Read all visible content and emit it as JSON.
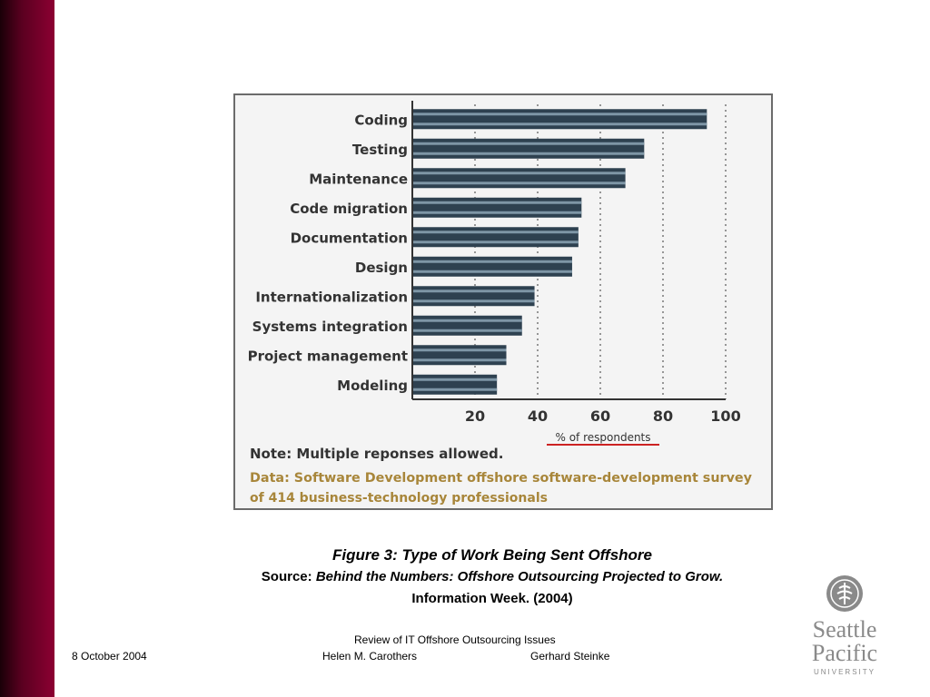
{
  "chart_data": {
    "type": "bar",
    "orientation": "horizontal",
    "categories": [
      "Coding",
      "Testing",
      "Maintenance",
      "Code migration",
      "Documentation",
      "Design",
      "Internationalization",
      "Systems integration",
      "Project management",
      "Modeling"
    ],
    "values": [
      94,
      74,
      68,
      54,
      53,
      51,
      39,
      35,
      30,
      27
    ],
    "xticks": [
      "20",
      "40",
      "60",
      "80",
      "100"
    ],
    "xlim": [
      0,
      100
    ],
    "xlabel": "% of respondents",
    "note": "Note: Multiple reponses allowed.",
    "data_source_line1": "Data: Software Development offshore software-development survey",
    "data_source_line2": "of 414 business-technology professionals",
    "bar_color": "#2e4150",
    "bar_stripe_color": "#7e96a6",
    "grid": "dotted vertical"
  },
  "caption": {
    "figure_title": "Figure 3: Type of Work Being Sent Offshore",
    "source_label": "Source:",
    "source_title": "Behind the Numbers: Offshore Outsourcing Projected to Grow.",
    "source_line2": "Information Week. (2004)"
  },
  "footer": {
    "date": "8 October 2004",
    "presentation_title": "Review of IT Offshore Outsourcing Issues",
    "author1": "Helen M. Carothers",
    "author2": "Gerhard Steinke"
  },
  "logo": {
    "line1": "Seattle",
    "line2": "Pacific",
    "line3": "UNIVERSITY"
  },
  "colors": {
    "sidebar": "#8c0032",
    "source_note": "#a8863a",
    "xlabel_underline": "#cc2222"
  }
}
